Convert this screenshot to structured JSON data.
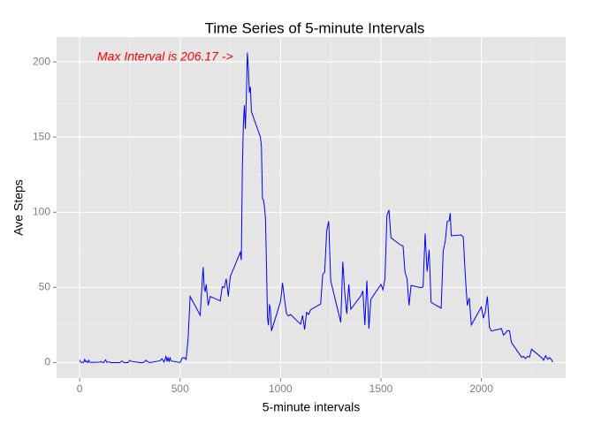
{
  "chart_data": {
    "type": "line",
    "title": "Time Series of 5-minute Intervals",
    "x_label": "5-minute intervals",
    "y_label": "Ave Steps",
    "annotation": "Max Interval is 206.17  ->",
    "annotation_color": "#ff0000",
    "x": [
      0,
      5,
      10,
      15,
      20,
      25,
      30,
      35,
      40,
      45,
      50,
      55,
      100,
      105,
      110,
      115,
      120,
      125,
      130,
      135,
      140,
      145,
      150,
      155,
      200,
      210,
      220,
      230,
      240,
      250,
      255,
      300,
      310,
      320,
      330,
      340,
      350,
      400,
      410,
      420,
      430,
      435,
      440,
      445,
      450,
      455,
      500,
      510,
      520,
      530,
      540,
      550,
      600,
      610,
      615,
      620,
      625,
      630,
      640,
      650,
      700,
      710,
      720,
      730,
      740,
      750,
      800,
      805,
      810,
      815,
      820,
      825,
      830,
      835,
      840,
      845,
      850,
      855,
      900,
      905,
      910,
      915,
      920,
      925,
      930,
      935,
      940,
      945,
      950,
      955,
      1000,
      1010,
      1020,
      1030,
      1040,
      1050,
      1100,
      1110,
      1120,
      1130,
      1140,
      1150,
      1200,
      1210,
      1220,
      1230,
      1240,
      1250,
      1300,
      1310,
      1320,
      1330,
      1340,
      1350,
      1400,
      1410,
      1420,
      1430,
      1440,
      1450,
      1500,
      1510,
      1520,
      1530,
      1540,
      1550,
      1600,
      1610,
      1620,
      1630,
      1640,
      1650,
      1700,
      1710,
      1720,
      1730,
      1740,
      1750,
      1800,
      1810,
      1820,
      1830,
      1840,
      1845,
      1850,
      1900,
      1910,
      1920,
      1930,
      1940,
      1950,
      2000,
      2010,
      2020,
      2030,
      2040,
      2050,
      2100,
      2110,
      2120,
      2130,
      2140,
      2150,
      2200,
      2210,
      2220,
      2230,
      2240,
      2250,
      2300,
      2310,
      2320,
      2330,
      2340,
      2350,
      2355
    ],
    "series": [
      {
        "name": "Ave Steps",
        "color": "#0000ff",
        "values": [
          1.7,
          0.3,
          0.1,
          0.2,
          0.1,
          2.1,
          0.5,
          0.9,
          0,
          1.5,
          0.3,
          0.1,
          0.3,
          0.7,
          0.2,
          0.3,
          0,
          1.1,
          1.8,
          0.2,
          0.2,
          0.4,
          0.3,
          0,
          0,
          1.1,
          0,
          0,
          0,
          1.5,
          0.9,
          0,
          0,
          0.2,
          1.6,
          0.5,
          0,
          1.2,
          2.6,
          0.3,
          4.1,
          0.7,
          3.5,
          0.8,
          3.1,
          1.1,
          0,
          3,
          3.3,
          2.1,
          16,
          44,
          31.5,
          53.8,
          63.5,
          49.9,
          47.1,
          52,
          38,
          44,
          41,
          50.5,
          49.9,
          55.7,
          44,
          57.3,
          73.4,
          68.2,
          129.4,
          157.5,
          171.2,
          155.4,
          177.3,
          206.17,
          195.9,
          179.6,
          183.4,
          167,
          150,
          143.5,
          109.1,
          108.1,
          103.7,
          95.97,
          66.2,
          30,
          24.8,
          38.8,
          34.98,
          21.1,
          40.6,
          53,
          42,
          32.5,
          31,
          32,
          25.5,
          31.4,
          22,
          33.4,
          32,
          35.1,
          39,
          58.6,
          60.2,
          87.9,
          94,
          54.4,
          26.8,
          67,
          46.2,
          32.4,
          52,
          35.5,
          44.4,
          47.7,
          25,
          54.5,
          22.6,
          42.1,
          52,
          48.4,
          55.7,
          98,
          101.5,
          83,
          78,
          77.7,
          60,
          55.7,
          38,
          51.3,
          49.8,
          50.5,
          85.8,
          60.6,
          75,
          40,
          36.2,
          74.3,
          80.4,
          93.8,
          94.5,
          99.5,
          84.4,
          84.9,
          83.5,
          58,
          38,
          43,
          25,
          37,
          29.5,
          34,
          44,
          23.5,
          21,
          22.6,
          18.3,
          19.5,
          21.3,
          21.1,
          13.3,
          3.6,
          4.1,
          2.6,
          4.2,
          3.6,
          8.9,
          3.3,
          1.6,
          4.6,
          2.2,
          3.3,
          1.8,
          0.2
        ]
      }
    ],
    "xlim": [
      -115,
      2420
    ],
    "ylim": [
      -10.3,
      216.5
    ],
    "xticks": [
      0,
      500,
      1000,
      1500,
      2000
    ],
    "yticks": [
      0,
      50,
      100,
      150,
      200
    ],
    "grid": true
  }
}
